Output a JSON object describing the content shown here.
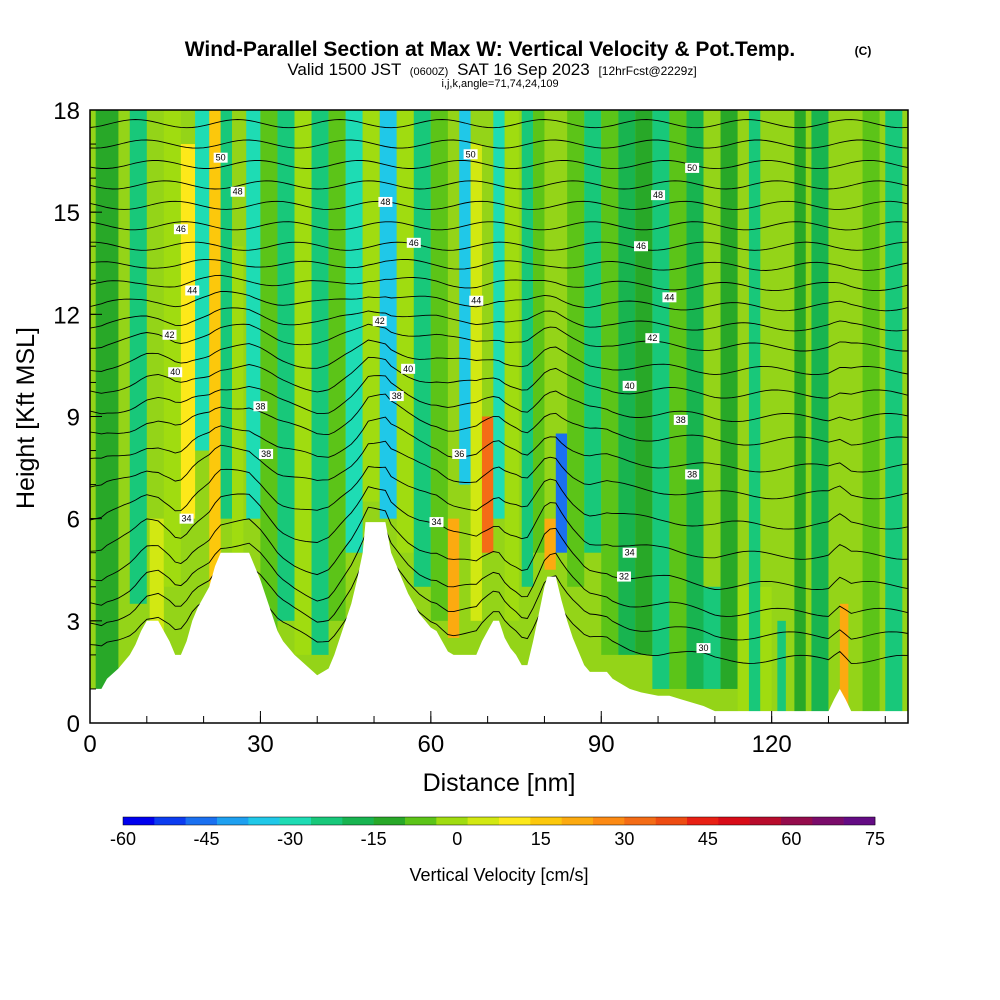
{
  "header": {
    "title": "Wind-Parallel Section at Max W: Vertical Velocity & Pot.Temp.",
    "copyright": "(C)",
    "valid_main": "Valid 1500 JST",
    "valid_utc": "(0600Z)",
    "valid_date": "SAT 16 Sep 2023",
    "forecast": "[12hrFcst@2229z]",
    "indices": "i,j,k,angle=71,74,24,109"
  },
  "chart_data": {
    "type": "heatmap",
    "xlabel": "Distance [nm]",
    "ylabel": "Height [Kft MSL]",
    "xlim": [
      0,
      144
    ],
    "ylim": [
      0,
      18
    ],
    "x_ticks": [
      0,
      30,
      60,
      90,
      120
    ],
    "y_ticks": [
      0,
      3,
      6,
      9,
      12,
      15,
      18
    ],
    "terrain_kft": [
      [
        0,
        1.0
      ],
      [
        2,
        1.0
      ],
      [
        3,
        1.3
      ],
      [
        5,
        1.6
      ],
      [
        7,
        2.0
      ],
      [
        8,
        2.3
      ],
      [
        9,
        2.7
      ],
      [
        10,
        3.0
      ],
      [
        12,
        3.0
      ],
      [
        13,
        2.7
      ],
      [
        14,
        2.4
      ],
      [
        15,
        2.0
      ],
      [
        16,
        2.0
      ],
      [
        17,
        2.4
      ],
      [
        18,
        3.0
      ],
      [
        19,
        3.4
      ],
      [
        20,
        3.7
      ],
      [
        21,
        4.0
      ],
      [
        22,
        4.6
      ],
      [
        23,
        5.0
      ],
      [
        28,
        5.0
      ],
      [
        29,
        4.6
      ],
      [
        30,
        4.2
      ],
      [
        31,
        3.7
      ],
      [
        32,
        3.2
      ],
      [
        33,
        2.7
      ],
      [
        34,
        2.4
      ],
      [
        36,
        2.0
      ],
      [
        38,
        1.7
      ],
      [
        40,
        1.4
      ],
      [
        42,
        1.6
      ],
      [
        43,
        2.0
      ],
      [
        44,
        2.5
      ],
      [
        45,
        3.0
      ],
      [
        46,
        3.5
      ],
      [
        47,
        4.2
      ],
      [
        48,
        5.0
      ],
      [
        48.5,
        5.9
      ],
      [
        52,
        5.9
      ],
      [
        53,
        5.0
      ],
      [
        54,
        4.6
      ],
      [
        55,
        4.2
      ],
      [
        56,
        3.8
      ],
      [
        57,
        3.5
      ],
      [
        58,
        3.2
      ],
      [
        59,
        3.0
      ],
      [
        60,
        2.8
      ],
      [
        61,
        2.7
      ],
      [
        62,
        2.4
      ],
      [
        63,
        2.1
      ],
      [
        64,
        2.0
      ],
      [
        68,
        2.0
      ],
      [
        69,
        2.4
      ],
      [
        70,
        2.7
      ],
      [
        71,
        3.0
      ],
      [
        72,
        3.0
      ],
      [
        73,
        2.5
      ],
      [
        74,
        2.2
      ],
      [
        75,
        2.0
      ],
      [
        76,
        1.7
      ],
      [
        77,
        1.7
      ],
      [
        78,
        2.4
      ],
      [
        79,
        3.2
      ],
      [
        80,
        4.0
      ],
      [
        80.5,
        4.3
      ],
      [
        82,
        4.3
      ],
      [
        83,
        3.6
      ],
      [
        84,
        3.0
      ],
      [
        85,
        2.5
      ],
      [
        86,
        2.1
      ],
      [
        87,
        1.7
      ],
      [
        88,
        1.5
      ],
      [
        91,
        1.5
      ],
      [
        92,
        1.3
      ],
      [
        93,
        1.2
      ],
      [
        95,
        1.0
      ],
      [
        97,
        0.9
      ],
      [
        100,
        0.8
      ],
      [
        102,
        0.8
      ],
      [
        104,
        0.7
      ],
      [
        108,
        0.5
      ],
      [
        110,
        0.35
      ],
      [
        130,
        0.35
      ],
      [
        131,
        0.7
      ],
      [
        132,
        1.0
      ],
      [
        133,
        0.7
      ],
      [
        134,
        0.35
      ],
      [
        144,
        0.35
      ]
    ],
    "velocity_cells_cms": [
      {
        "x": 1,
        "w": 4,
        "y0": 0,
        "y1": 18,
        "v": 4
      },
      {
        "x": 7,
        "w": 3,
        "y0": 3.5,
        "y1": 18,
        "v": -12
      },
      {
        "x": 10.5,
        "w": 2.5,
        "y0": 2.5,
        "y1": 6,
        "v": 25
      },
      {
        "x": 13,
        "w": 3,
        "y0": 4,
        "y1": 18,
        "v": 18
      },
      {
        "x": 16,
        "w": 2.5,
        "y0": 6,
        "y1": 17,
        "v": 32
      },
      {
        "x": 18.5,
        "w": 2.5,
        "y0": 8,
        "y1": 18,
        "v": -18
      },
      {
        "x": 21,
        "w": 2,
        "y0": 4,
        "y1": 18,
        "v": 38
      },
      {
        "x": 23,
        "w": 2,
        "y0": 6,
        "y1": 18,
        "v": -15
      },
      {
        "x": 25,
        "w": 2,
        "y0": 5,
        "y1": 14,
        "v": 18
      },
      {
        "x": 27.5,
        "w": 2.5,
        "y0": 6,
        "y1": 18,
        "v": -22
      },
      {
        "x": 30,
        "w": 3,
        "y0": 2,
        "y1": 18,
        "v": 14
      },
      {
        "x": 33,
        "w": 3,
        "y0": 3,
        "y1": 18,
        "v": -8
      },
      {
        "x": 36,
        "w": 3,
        "y0": 2,
        "y1": 18,
        "v": 20
      },
      {
        "x": 39,
        "w": 3,
        "y0": 2,
        "y1": 18,
        "v": -14
      },
      {
        "x": 42,
        "w": 3,
        "y0": 3,
        "y1": 18,
        "v": 10
      },
      {
        "x": 45,
        "w": 3,
        "y0": 5,
        "y1": 18,
        "v": -16
      },
      {
        "x": 48,
        "w": 3,
        "y0": 6.5,
        "y1": 18,
        "v": 22
      },
      {
        "x": 51,
        "w": 3,
        "y0": 6,
        "y1": 18,
        "v": -26
      },
      {
        "x": 54,
        "w": 3,
        "y0": 5,
        "y1": 18,
        "v": 16
      },
      {
        "x": 57,
        "w": 3,
        "y0": 4,
        "y1": 18,
        "v": -12
      },
      {
        "x": 60,
        "w": 3,
        "y0": 3,
        "y1": 18,
        "v": 12
      },
      {
        "x": 63,
        "w": 2,
        "y0": 2.5,
        "y1": 6,
        "v": 45
      },
      {
        "x": 65,
        "w": 2,
        "y0": 7,
        "y1": 18,
        "v": -30
      },
      {
        "x": 67,
        "w": 2,
        "y0": 3,
        "y1": 17,
        "v": 28
      },
      {
        "x": 69,
        "w": 2,
        "y0": 5,
        "y1": 9,
        "v": 60
      },
      {
        "x": 71,
        "w": 2,
        "y0": 6,
        "y1": 18,
        "v": -18
      },
      {
        "x": 73,
        "w": 2.5,
        "y0": 3,
        "y1": 18,
        "v": 20
      },
      {
        "x": 76,
        "w": 2,
        "y0": 4,
        "y1": 18,
        "v": -12
      },
      {
        "x": 78,
        "w": 2,
        "y0": 5,
        "y1": 18,
        "v": 14
      },
      {
        "x": 80,
        "w": 2,
        "y0": 4.5,
        "y1": 6,
        "v": 50
      },
      {
        "x": 82,
        "w": 2,
        "y0": 5,
        "y1": 8.5,
        "v": -40
      },
      {
        "x": 84,
        "w": 3,
        "y0": 4,
        "y1": 18,
        "v": 10
      },
      {
        "x": 87,
        "w": 3,
        "y0": 5,
        "y1": 18,
        "v": -10
      },
      {
        "x": 90,
        "w": 3,
        "y0": 2,
        "y1": 18,
        "v": 8
      },
      {
        "x": 93,
        "w": 3,
        "y0": 2,
        "y1": 18,
        "v": -6
      },
      {
        "x": 96,
        "w": 3,
        "y0": 2,
        "y1": 18,
        "v": 6
      },
      {
        "x": 99,
        "w": 3,
        "y0": 1,
        "y1": 18,
        "v": -8
      },
      {
        "x": 102,
        "w": 3,
        "y0": 1,
        "y1": 18,
        "v": 10
      },
      {
        "x": 105,
        "w": 3,
        "y0": 1,
        "y1": 18,
        "v": -6
      },
      {
        "x": 108,
        "w": 3,
        "y0": 1,
        "y1": 4,
        "v": -14
      },
      {
        "x": 111,
        "w": 3,
        "y0": 1,
        "y1": 18,
        "v": 4
      },
      {
        "x": 114,
        "w": 2,
        "y0": 0.3,
        "y1": 4,
        "v": 16
      },
      {
        "x": 116,
        "w": 2,
        "y0": 0.3,
        "y1": 18,
        "v": -8
      },
      {
        "x": 118,
        "w": 2,
        "y0": 0.3,
        "y1": 4,
        "v": 18
      },
      {
        "x": 121,
        "w": 1.5,
        "y0": 0.3,
        "y1": 3,
        "v": -12
      },
      {
        "x": 124,
        "w": 2,
        "y0": 0.3,
        "y1": 18,
        "v": 6
      },
      {
        "x": 127,
        "w": 3,
        "y0": 0.3,
        "y1": 18,
        "v": -6
      },
      {
        "x": 132,
        "w": 1.5,
        "y0": 0.3,
        "y1": 3.5,
        "v": 45
      },
      {
        "x": 136,
        "w": 3,
        "y0": 0.3,
        "y1": 18,
        "v": 8
      },
      {
        "x": 140,
        "w": 3,
        "y0": 0.3,
        "y1": 18,
        "v": -8
      }
    ],
    "theta_contour_heights_kft": [
      1.7,
      2.4,
      3.1,
      3.9,
      4.8,
      5.7,
      6.6,
      7.4,
      8.2,
      8.9,
      9.6,
      10.3,
      11.0,
      11.6,
      12.2,
      12.8,
      13.4,
      14.0,
      14.6,
      15.2,
      15.8,
      16.4,
      17.0,
      17.6
    ],
    "contour_labels": [
      {
        "text": "50",
        "x": 23,
        "y": 16.6
      },
      {
        "text": "50",
        "x": 67,
        "y": 16.7
      },
      {
        "text": "50",
        "x": 106,
        "y": 16.3
      },
      {
        "text": "48",
        "x": 26,
        "y": 15.6
      },
      {
        "text": "48",
        "x": 52,
        "y": 15.3
      },
      {
        "text": "48",
        "x": 100,
        "y": 15.5
      },
      {
        "text": "46",
        "x": 16,
        "y": 14.5
      },
      {
        "text": "46",
        "x": 57,
        "y": 14.1
      },
      {
        "text": "46",
        "x": 97,
        "y": 14.0
      },
      {
        "text": "44",
        "x": 18,
        "y": 12.7
      },
      {
        "text": "44",
        "x": 68,
        "y": 12.4
      },
      {
        "text": "44",
        "x": 102,
        "y": 12.5
      },
      {
        "text": "42",
        "x": 14,
        "y": 11.4
      },
      {
        "text": "42",
        "x": 51,
        "y": 11.8
      },
      {
        "text": "42",
        "x": 99,
        "y": 11.3
      },
      {
        "text": "40",
        "x": 15,
        "y": 10.3
      },
      {
        "text": "40",
        "x": 56,
        "y": 10.4
      },
      {
        "text": "40",
        "x": 95,
        "y": 9.9
      },
      {
        "text": "38",
        "x": 30,
        "y": 9.3
      },
      {
        "text": "38",
        "x": 54,
        "y": 9.6
      },
      {
        "text": "38",
        "x": 104,
        "y": 8.9
      },
      {
        "text": "38",
        "x": 31,
        "y": 7.9
      },
      {
        "text": "36",
        "x": 65,
        "y": 7.9
      },
      {
        "text": "38",
        "x": 106,
        "y": 7.3
      },
      {
        "text": "34",
        "x": 17,
        "y": 6.0
      },
      {
        "text": "34",
        "x": 61,
        "y": 5.9
      },
      {
        "text": "34",
        "x": 95,
        "y": 5.0
      },
      {
        "text": "32",
        "x": 94,
        "y": 4.3
      },
      {
        "text": "30",
        "x": 108,
        "y": 2.2
      }
    ],
    "colorbar": {
      "label": "Vertical Velocity [cm/s]",
      "min": -60,
      "max": 75,
      "step": 7.5,
      "ticks": [
        "-60",
        "-45",
        "-30",
        "-15",
        "0",
        "15",
        "30",
        "45",
        "60",
        "75"
      ],
      "colors": [
        "#0000ee",
        "#0c3cf0",
        "#1a70f0",
        "#1ea0f0",
        "#20c8e8",
        "#1edcb4",
        "#18c87a",
        "#18b450",
        "#28a828",
        "#5cc418",
        "#a0dc10",
        "#d2e812",
        "#fce81a",
        "#fcc80c",
        "#fcaa10",
        "#fc8a14",
        "#f46c16",
        "#ee4c12",
        "#e82014",
        "#d80c18",
        "#b80c2c",
        "#940c4c",
        "#7a0c6a",
        "#640c84"
      ]
    }
  }
}
